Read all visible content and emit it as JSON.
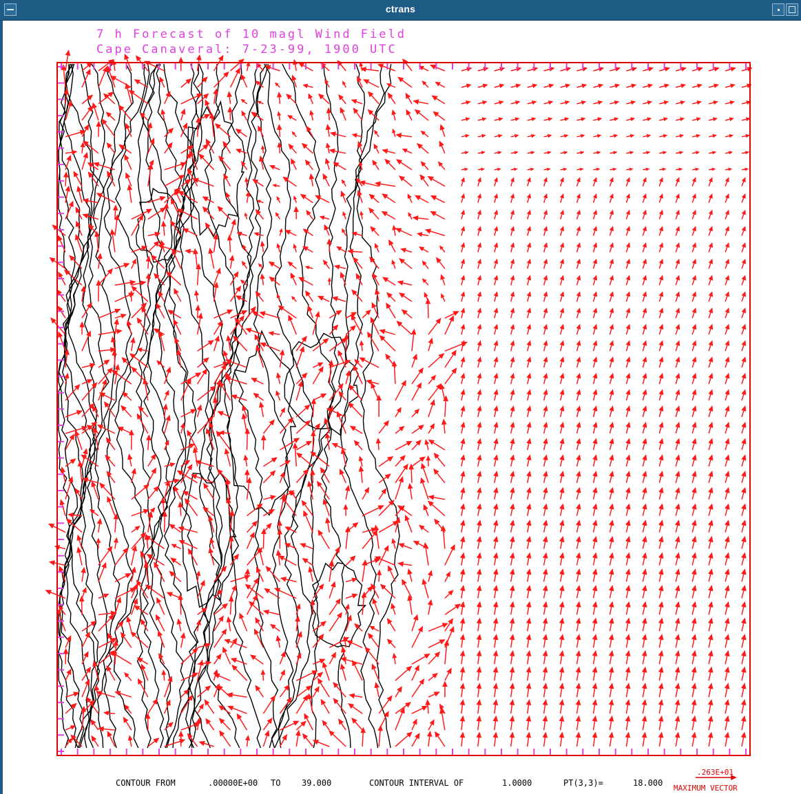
{
  "window": {
    "title": "ctrans"
  },
  "plot": {
    "title_line1": "7 h Forecast of 10 magl Wind Field",
    "title_line2": "Cape Canaveral: 7-23-99, 1900 UTC"
  },
  "footer": {
    "contour_from_label": "CONTOUR FROM",
    "contour_from_value": ".00000E+00",
    "to_label": "TO",
    "to_value": "39.000",
    "interval_label": "CONTOUR INTERVAL OF",
    "interval_value": "1.0000",
    "pt_label": "PT(3,3)=",
    "pt_value": "18.000",
    "max_vector_value": ".263E+01",
    "max_vector_label": "MAXIMUM VECTOR"
  },
  "colors": {
    "vector": "#ff1a1a",
    "frame": "#e00000",
    "tick": "#e040e0",
    "contour": "#000000",
    "title": "#e040e0",
    "titlebar": "#1e5c86"
  },
  "icons": [
    "window-menu-icon",
    "minimize-icon",
    "maximize-icon"
  ]
}
